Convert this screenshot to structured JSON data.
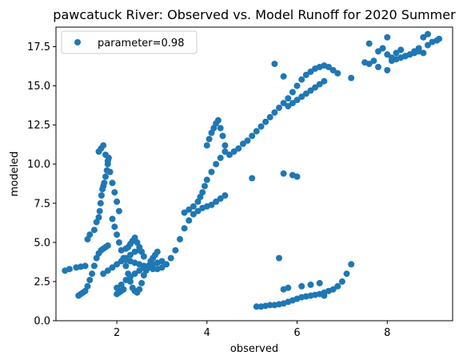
{
  "chart_data": {
    "type": "scatter",
    "title": "pawcatuck River: Observed vs. Model Runoff for 2020 Summer",
    "xlabel": "observed",
    "ylabel": "modeled",
    "xlim": [
      0.65,
      9.45
    ],
    "ylim": [
      0.0,
      18.75
    ],
    "xticks": [
      2,
      4,
      6,
      8
    ],
    "xtick_labels": [
      "2",
      "4",
      "6",
      "8"
    ],
    "yticks": [
      0.0,
      2.5,
      5.0,
      7.5,
      10.0,
      12.5,
      15.0,
      17.5
    ],
    "ytick_labels": [
      "0.0",
      "2.5",
      "5.0",
      "7.5",
      "10.0",
      "12.5",
      "15.0",
      "17.5"
    ],
    "grid": false,
    "legend_position": "upper-left",
    "marker_color": "#1f77b4",
    "series": [
      {
        "name": "parameter=0.98",
        "color": "#1f77b4",
        "x": [
          0.85,
          0.95,
          1.1,
          1.2,
          1.3,
          1.15,
          1.2,
          1.25,
          1.3,
          1.35,
          1.4,
          1.45,
          1.5,
          1.55,
          1.6,
          1.65,
          1.7,
          1.75,
          1.8,
          1.35,
          1.4,
          1.5,
          1.55,
          1.6,
          1.62,
          1.64,
          1.66,
          1.68,
          1.7,
          1.72,
          1.75,
          1.78,
          1.8,
          1.82,
          1.6,
          1.65,
          1.7,
          1.75,
          1.8,
          1.85,
          1.9,
          1.95,
          2.0,
          2.05,
          1.9,
          1.95,
          2.0,
          2.05,
          2.1,
          2.15,
          2.2,
          2.25,
          2.3,
          2.35,
          2.4,
          2.45,
          2.5,
          2.55,
          2.6,
          2.65,
          2.7,
          2.75,
          2.8,
          2.85,
          2.9,
          2.2,
          2.25,
          2.3,
          2.35,
          2.4,
          2.45,
          2.5,
          2.55,
          2.6,
          2.2,
          2.3,
          2.4,
          2.5,
          2.6,
          2.7,
          2.8,
          2.9,
          3.0,
          3.1,
          3.2,
          3.3,
          3.4,
          3.5,
          3.6,
          3.7,
          3.8,
          3.9,
          4.0,
          4.1,
          4.2,
          4.3,
          4.4,
          3.5,
          3.6,
          3.7,
          3.8,
          3.85,
          3.9,
          3.95,
          4.0,
          4.1,
          4.2,
          4.3,
          4.4,
          4.0,
          4.05,
          4.1,
          4.15,
          4.2,
          4.25,
          4.3,
          4.35,
          4.4,
          4.5,
          4.6,
          4.7,
          4.8,
          4.9,
          5.0,
          5.1,
          5.2,
          5.3,
          5.4,
          5.5,
          5.6,
          5.7,
          5.8,
          5.9,
          6.0,
          6.1,
          6.2,
          6.3,
          6.4,
          6.5,
          6.6,
          6.7,
          6.8,
          6.9,
          5.7,
          5.8,
          5.9,
          6.0,
          6.1,
          6.2,
          6.3,
          6.4,
          6.5,
          6.6,
          7.2,
          7.5,
          7.6,
          7.7,
          7.8,
          7.9,
          8.0,
          8.1,
          8.2,
          8.3,
          8.4,
          8.5,
          8.6,
          8.7,
          8.8,
          8.9,
          9.0,
          9.1,
          9.15,
          8.0,
          8.1,
          8.2,
          8.3,
          8.4,
          8.5,
          8.6,
          8.7,
          8.8,
          8.9,
          7.6,
          7.8,
          8.0,
          5.5,
          5.7,
          5.9,
          6.0,
          5.0,
          5.1,
          5.2,
          5.3,
          5.4,
          5.5,
          5.6,
          5.7,
          5.8,
          5.9,
          6.0,
          6.1,
          6.2,
          6.3,
          6.4,
          6.5,
          6.6,
          6.7,
          6.8,
          6.9,
          7.0,
          7.1,
          7.2,
          5.6,
          5.7,
          5.8,
          6.1,
          6.3,
          6.5,
          6.6,
          2.0,
          2.05,
          2.1,
          2.15,
          2.0,
          2.1,
          2.2,
          2.3,
          2.4,
          2.5,
          2.6,
          2.7,
          2.8,
          2.9,
          3.0,
          1.7,
          1.8,
          1.9,
          2.0,
          2.1,
          2.2,
          2.3,
          2.4,
          2.5
        ],
        "y": [
          3.2,
          3.3,
          3.4,
          3.45,
          3.5,
          1.6,
          1.7,
          1.8,
          1.9,
          2.2,
          2.6,
          3.0,
          3.5,
          4.0,
          4.3,
          4.5,
          4.6,
          4.7,
          4.8,
          5.2,
          5.5,
          5.8,
          6.3,
          6.6,
          7.0,
          7.5,
          8.0,
          8.4,
          8.6,
          8.8,
          9.2,
          9.6,
          10.0,
          10.4,
          10.8,
          11.0,
          11.2,
          10.6,
          10.2,
          9.5,
          8.8,
          8.2,
          7.6,
          7.0,
          6.5,
          6.0,
          5.5,
          5.0,
          4.5,
          4.0,
          3.5,
          3.0,
          2.5,
          2.1,
          1.9,
          1.8,
          2.0,
          2.4,
          2.9,
          3.2,
          3.5,
          3.8,
          4.0,
          4.2,
          4.4,
          4.6,
          4.7,
          4.9,
          5.1,
          5.3,
          5.0,
          4.7,
          4.4,
          4.1,
          3.9,
          3.8,
          3.7,
          3.6,
          3.5,
          3.4,
          3.3,
          3.3,
          3.4,
          3.6,
          4.0,
          4.5,
          5.2,
          5.9,
          6.4,
          6.8,
          7.0,
          7.2,
          7.3,
          7.4,
          7.6,
          7.8,
          8.0,
          6.9,
          7.1,
          7.3,
          7.6,
          7.9,
          8.2,
          8.6,
          9.0,
          9.5,
          10.0,
          10.4,
          10.8,
          11.2,
          11.6,
          12.0,
          12.3,
          12.6,
          12.8,
          12.3,
          11.8,
          11.2,
          10.6,
          10.8,
          11.0,
          11.3,
          11.5,
          11.8,
          12.1,
          12.4,
          12.7,
          13.0,
          13.3,
          13.6,
          13.9,
          14.2,
          14.6,
          15.0,
          15.4,
          15.7,
          15.9,
          16.1,
          16.2,
          16.3,
          16.2,
          16.0,
          15.8,
          15.6,
          13.7,
          13.9,
          14.1,
          14.3,
          14.5,
          14.7,
          14.9,
          15.1,
          15.3,
          15.5,
          16.5,
          16.4,
          16.6,
          17.2,
          17.4,
          17.0,
          16.8,
          17.1,
          17.3,
          16.9,
          17.0,
          17.2,
          17.4,
          17.1,
          17.6,
          17.8,
          17.9,
          18.0,
          18.1,
          16.6,
          16.7,
          16.8,
          16.9,
          17.0,
          17.1,
          17.2,
          18.1,
          18.3,
          17.7,
          16.2,
          16.0,
          16.4,
          9.4,
          9.3,
          9.2,
          9.1,
          0.9,
          0.9,
          0.95,
          1.0,
          1.0,
          1.05,
          1.1,
          1.2,
          1.3,
          1.4,
          1.5,
          1.55,
          1.6,
          1.65,
          1.7,
          1.8,
          1.9,
          2.0,
          2.2,
          2.5,
          3.0,
          3.6,
          4.0,
          2.0,
          2.1,
          2.2,
          2.3,
          2.4,
          1.6,
          1.7,
          1.8,
          1.9,
          2.0,
          2.1,
          2.3,
          2.6,
          2.8,
          3.0,
          3.2,
          3.4,
          3.5,
          3.6,
          3.7,
          3.8,
          3.0,
          3.2,
          3.4,
          3.6,
          3.8,
          4.0,
          4.2,
          4.4,
          4.5
        ]
      }
    ]
  }
}
